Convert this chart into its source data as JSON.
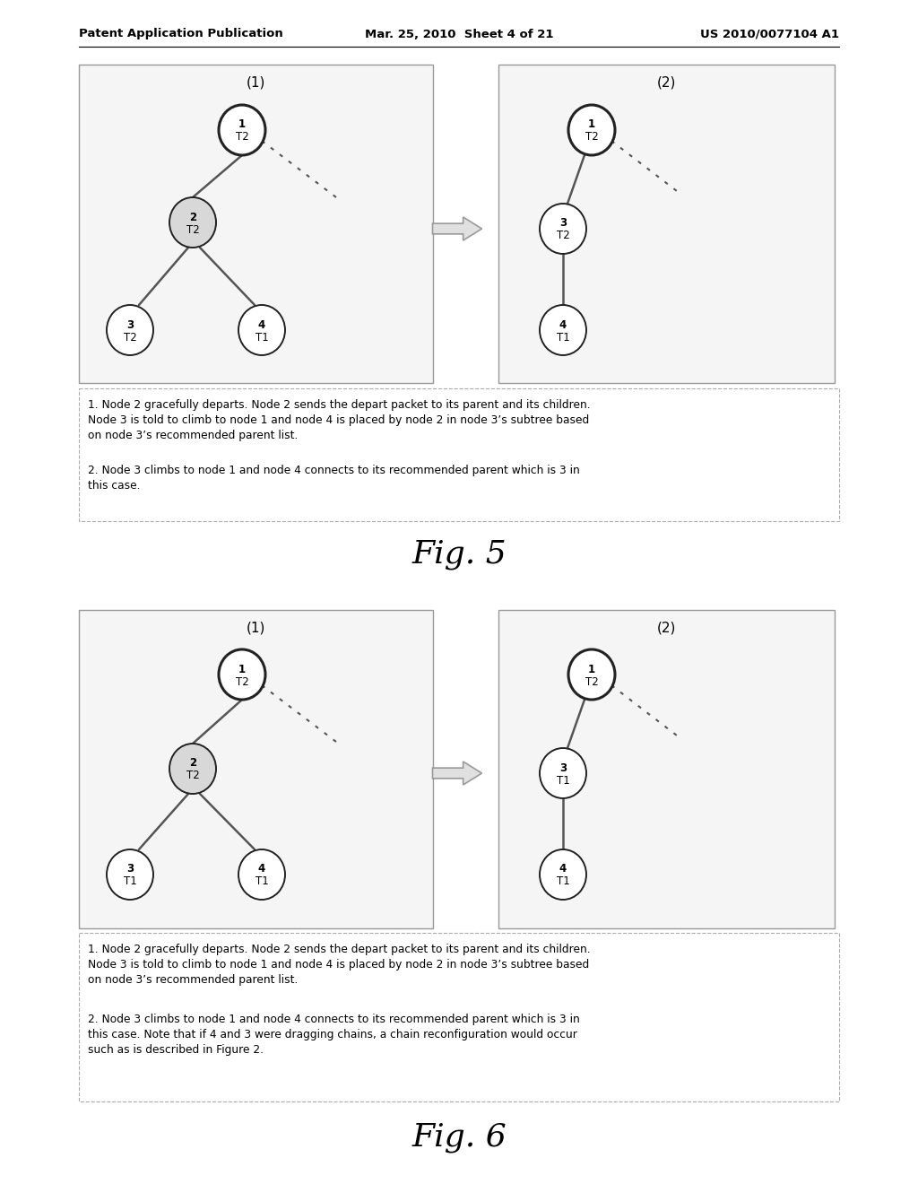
{
  "header_left": "Patent Application Publication",
  "header_mid": "Mar. 25, 2010  Sheet 4 of 21",
  "header_right": "US 2010/0077104 A1",
  "fig5_label": "Fig. 5",
  "fig6_label": "Fig. 6",
  "fig5_text1": "1. Node 2 gracefully departs. Node 2 sends the depart packet to its parent and its children.\nNode 3 is told to climb to node 1 and node 4 is placed by node 2 in node 3’s subtree based\non node 3’s recommended parent list.",
  "fig5_text2": "2. Node 3 climbs to node 1 and node 4 connects to its recommended parent which is 3 in\nthis case.",
  "fig6_text1": "1. Node 2 gracefully departs. Node 2 sends the depart packet to its parent and its children.\nNode 3 is told to climb to node 1 and node 4 is placed by node 2 in node 3’s subtree based\non node 3’s recommended parent list.",
  "fig6_text2": "2. Node 3 climbs to node 1 and node 4 connects to its recommended parent which is 3 in\nthis case. Note that if 4 and 3 were dragging chains, a chain reconfiguration would occur\nsuch as is described in Figure 2.",
  "background": "#ffffff",
  "node_fill_normal": "#ffffff",
  "node_fill_gray": "#d8d8d8",
  "node_border_color": "#222222",
  "line_color": "#555555",
  "box_edge_color": "#999999",
  "text_box_edge_color": "#aaaaaa",
  "arrow_face": "#e0e0e0",
  "arrow_edge": "#999999"
}
